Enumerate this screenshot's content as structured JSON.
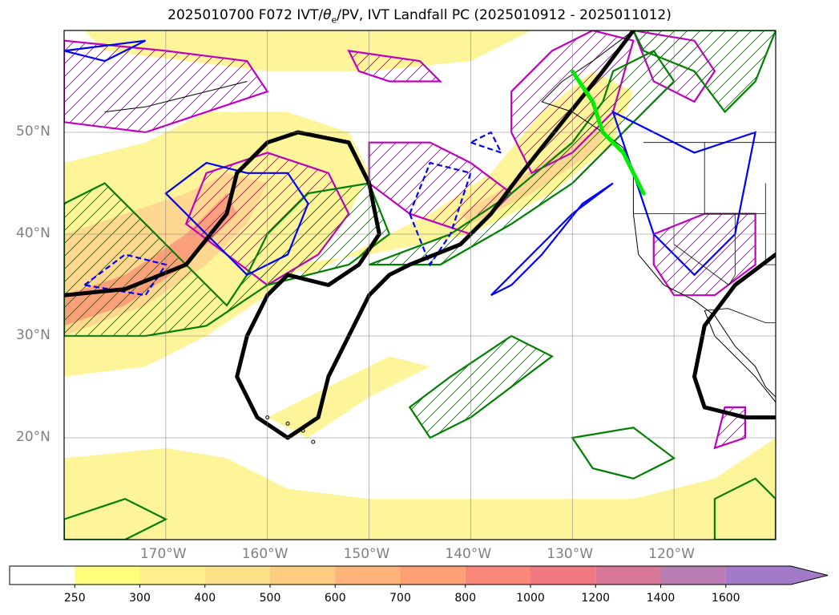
{
  "title": {
    "prefix": "2025010700 F072 IVT/",
    "theta_symbol": "θ",
    "theta_sub": "e",
    "suffix": "/PV, IVT Landfall PC (2025010912 - 2025011012)"
  },
  "chart_data": {
    "type": "map",
    "projection": "cylindrical",
    "extent": {
      "lon": [
        -180,
        -110
      ],
      "lat": [
        10,
        60
      ]
    },
    "lat_ticks": [
      {
        "value": 50,
        "label": "50°N"
      },
      {
        "value": 40,
        "label": "40°N"
      },
      {
        "value": 30,
        "label": "30°N"
      },
      {
        "value": 20,
        "label": "20°N"
      }
    ],
    "lon_ticks": [
      {
        "value": -170,
        "label": "170°W"
      },
      {
        "value": -160,
        "label": "160°W"
      },
      {
        "value": -150,
        "label": "150°W"
      },
      {
        "value": -140,
        "label": "140°W"
      },
      {
        "value": -130,
        "label": "130°W"
      },
      {
        "value": -120,
        "label": "120°W"
      }
    ],
    "grid": true,
    "colorbar": {
      "orientation": "horizontal",
      "extend": "max",
      "levels": [
        "250",
        "300",
        "400",
        "500",
        "600",
        "700",
        "800",
        "1000",
        "1200",
        "1400",
        "1600"
      ],
      "colors": [
        "#fefe7a",
        "#fef08a",
        "#fee08a",
        "#fecc80",
        "#feb478",
        "#fea074",
        "#fa8878",
        "#f27880",
        "#d87896",
        "#bc7cb4",
        "#a27ac8"
      ],
      "under_color": "#ffffff"
    },
    "ivt_shading": [
      {
        "level": 250,
        "color": "#fef49a",
        "regions": [
          [
            [
              -180,
              47
            ],
            [
              -172,
              49
            ],
            [
              -166,
              52
            ],
            [
              -158,
              52
            ],
            [
              -152,
              50
            ],
            [
              -150,
              46
            ],
            [
              -152,
              42
            ],
            [
              -155,
              38
            ],
            [
              -160,
              34
            ],
            [
              -166,
              30
            ],
            [
              -172,
              27
            ],
            [
              -180,
              26
            ]
          ],
          [
            [
              -176,
              58
            ],
            [
              -168,
              57
            ],
            [
              -160,
              56
            ],
            [
              -150,
              56
            ],
            [
              -140,
              57
            ],
            [
              -134,
              60
            ],
            [
              -170,
              60
            ],
            [
              -178,
              60
            ]
          ],
          [
            [
              -158,
              37
            ],
            [
              -150,
              38
            ],
            [
              -140,
              40
            ],
            [
              -132,
              44
            ],
            [
              -126,
              49
            ],
            [
              -124,
              54
            ],
            [
              -128,
              56
            ],
            [
              -133,
              52
            ],
            [
              -138,
              46
            ],
            [
              -144,
              42
            ],
            [
              -150,
              39
            ],
            [
              -156,
              36
            ]
          ],
          [
            [
              -180,
              18
            ],
            [
              -170,
              19
            ],
            [
              -164,
              18
            ],
            [
              -158,
              15
            ],
            [
              -150,
              14
            ],
            [
              -142,
              14
            ],
            [
              -134,
              14
            ],
            [
              -124,
              14
            ],
            [
              -116,
              16
            ],
            [
              -110,
              20
            ],
            [
              -110,
              10
            ],
            [
              -180,
              10
            ]
          ],
          [
            [
              -160,
              22
            ],
            [
              -154,
              25
            ],
            [
              -148,
              28
            ],
            [
              -144,
              27
            ],
            [
              -150,
              24
            ],
            [
              -156,
              20
            ]
          ]
        ]
      },
      {
        "level": 400,
        "color": "#fed890",
        "regions": [
          [
            [
              -180,
              40
            ],
            [
              -174,
              42
            ],
            [
              -168,
              44
            ],
            [
              -164,
              46
            ],
            [
              -160,
              45
            ],
            [
              -162,
              41
            ],
            [
              -166,
              37
            ],
            [
              -172,
              33
            ],
            [
              -180,
              30
            ]
          ],
          [
            [
              -140,
              41
            ],
            [
              -134,
              44
            ],
            [
              -128,
              48
            ],
            [
              -126,
              51
            ],
            [
              -130,
              49
            ],
            [
              -136,
              45
            ],
            [
              -141,
              42
            ]
          ]
        ]
      },
      {
        "level": 700,
        "color": "#fca07c",
        "regions": [
          [
            [
              -180,
              34
            ],
            [
              -174,
              36
            ],
            [
              -168,
              40
            ],
            [
              -164,
              44
            ],
            [
              -163,
              42
            ],
            [
              -168,
              37
            ],
            [
              -174,
              33
            ],
            [
              -180,
              31
            ]
          ]
        ]
      }
    ],
    "pv_contours": [
      {
        "color": "#008000",
        "hatched": true,
        "regions": [
          [
            [
              -180,
              43
            ],
            [
              -176,
              45
            ],
            [
              -172,
              41
            ],
            [
              -168,
              37
            ],
            [
              -164,
              33
            ],
            [
              -162,
              36
            ],
            [
              -160,
              40
            ],
            [
              -156,
              44
            ],
            [
              -150,
              45
            ],
            [
              -148,
              40
            ],
            [
              -152,
              37
            ],
            [
              -160,
              35
            ],
            [
              -166,
              31
            ],
            [
              -172,
              30
            ],
            [
              -180,
              30
            ]
          ],
          [
            [
              -150,
              37
            ],
            [
              -142,
              40
            ],
            [
              -136,
              44
            ],
            [
              -130,
              49
            ],
            [
              -127,
              53
            ],
            [
              -126,
              56
            ],
            [
              -122,
              58
            ],
            [
              -120,
              55
            ],
            [
              -125,
              50
            ],
            [
              -130,
              45
            ],
            [
              -136,
              41
            ],
            [
              -143,
              37
            ]
          ],
          [
            [
              -140,
              22
            ],
            [
              -136,
              25
            ],
            [
              -132,
              28
            ],
            [
              -136,
              30
            ],
            [
              -142,
              26
            ],
            [
              -146,
              23
            ],
            [
              -144,
              20
            ]
          ],
          [
            [
              -123,
              58
            ],
            [
              -118,
              56
            ],
            [
              -115,
              52
            ],
            [
              -112,
              55
            ],
            [
              -110,
              60
            ],
            [
              -124,
              60
            ]
          ]
        ]
      },
      {
        "color": "#008000",
        "hatched": false,
        "regions": [
          [
            [
              -116,
              14
            ],
            [
              -112,
              16
            ],
            [
              -110,
              14
            ],
            [
              -110,
              10
            ],
            [
              -116,
              10
            ]
          ],
          [
            [
              -130,
              20
            ],
            [
              -124,
              21
            ],
            [
              -120,
              18
            ],
            [
              -124,
              16
            ],
            [
              -128,
              17
            ]
          ],
          [
            [
              -180,
              12
            ],
            [
              -174,
              14
            ],
            [
              -170,
              12
            ],
            [
              -174,
              10
            ],
            [
              -180,
              10
            ]
          ]
        ]
      }
    ],
    "pv_dashed_contours": [
      {
        "color": "#0000ff",
        "regions": [
          [
            [
              -178,
              35
            ],
            [
              -174,
              38
            ],
            [
              -170,
              37
            ],
            [
              -172,
              34
            ]
          ],
          [
            [
              -146,
              42
            ],
            [
              -144,
              47
            ],
            [
              -140,
              46
            ],
            [
              -142,
              40
            ],
            [
              -144,
              37
            ]
          ],
          [
            [
              -140,
              49
            ],
            [
              -137,
              48
            ],
            [
              -138,
              50
            ]
          ]
        ]
      }
    ],
    "thetae_contours": [
      {
        "color": "#0000ff",
        "regions": [
          [
            [
              -170,
              44
            ],
            [
              -166,
              40
            ],
            [
              -162,
              36
            ],
            [
              -158,
              38
            ],
            [
              -156,
              43
            ],
            [
              -158,
              46
            ],
            [
              -162,
              46
            ],
            [
              -166,
              47
            ]
          ],
          [
            [
              -138,
              34
            ],
            [
              -134,
              38
            ],
            [
              -130,
              42
            ],
            [
              -126,
              45
            ],
            [
              -129,
              43
            ],
            [
              -133,
              38
            ],
            [
              -136,
              35
            ]
          ],
          [
            [
              -126,
              52
            ],
            [
              -118,
              48
            ],
            [
              -112,
              50
            ],
            [
              -114,
              40
            ],
            [
              -118,
              36
            ],
            [
              -122,
              40
            ],
            [
              -124,
              46
            ]
          ],
          [
            [
              -176,
              57
            ],
            [
              -172,
              59
            ],
            [
              -180,
              58
            ]
          ]
        ]
      }
    ],
    "landfall_pc_hatch": [
      {
        "color": "#c000c0",
        "regions": [
          [
            [
              -180,
              59
            ],
            [
              -170,
              58
            ],
            [
              -162,
              57
            ],
            [
              -160,
              54
            ],
            [
              -166,
              52
            ],
            [
              -172,
              50
            ],
            [
              -180,
              51
            ]
          ],
          [
            [
              -166,
              46
            ],
            [
              -160,
              48
            ],
            [
              -154,
              46
            ],
            [
              -152,
              42
            ],
            [
              -155,
              38
            ],
            [
              -160,
              35
            ],
            [
              -164,
              38
            ],
            [
              -168,
              41
            ]
          ],
          [
            [
              -150,
              49
            ],
            [
              -144,
              49
            ],
            [
              -140,
              47
            ],
            [
              -136,
              44
            ],
            [
              -140,
              40
            ],
            [
              -146,
              42
            ],
            [
              -150,
              45
            ]
          ],
          [
            [
              -152,
              58
            ],
            [
              -145,
              57
            ],
            [
              -143,
              55
            ],
            [
              -148,
              55
            ],
            [
              -151,
              56
            ]
          ],
          [
            [
              -136,
              54
            ],
            [
              -132,
              58
            ],
            [
              -128,
              60
            ],
            [
              -124,
              59
            ],
            [
              -126,
              52
            ],
            [
              -130,
              48
            ],
            [
              -134,
              46
            ],
            [
              -136,
              50
            ]
          ],
          [
            [
              -124,
              60
            ],
            [
              -118,
              59
            ],
            [
              -116,
              56
            ],
            [
              -118,
              53
            ],
            [
              -122,
              55
            ]
          ],
          [
            [
              -122,
              40
            ],
            [
              -117,
              42
            ],
            [
              -112,
              42
            ],
            [
              -112,
              37
            ],
            [
              -116,
              34
            ],
            [
              -120,
              34
            ],
            [
              -122,
              37
            ]
          ],
          [
            [
              -115,
              23
            ],
            [
              -113,
              23
            ],
            [
              -113,
              20
            ],
            [
              -116,
              19
            ]
          ]
        ]
      }
    ],
    "heavy_black_contours": [
      [
        [
          -180,
          34
        ],
        [
          -174,
          34.6
        ],
        [
          -168,
          37
        ],
        [
          -164,
          42
        ],
        [
          -163,
          46
        ],
        [
          -160,
          49
        ],
        [
          -157,
          50
        ],
        [
          -152,
          49
        ],
        [
          -150,
          45
        ],
        [
          -149,
          40
        ],
        [
          -151,
          37
        ],
        [
          -154,
          35
        ],
        [
          -158,
          36
        ],
        [
          -160,
          34
        ],
        [
          -162,
          30
        ],
        [
          -163,
          26
        ],
        [
          -161,
          22
        ],
        [
          -158,
          20
        ],
        [
          -155,
          22
        ],
        [
          -154,
          26
        ],
        [
          -152,
          30
        ],
        [
          -150,
          34
        ],
        [
          -148,
          36
        ],
        [
          -146,
          37
        ],
        [
          -141,
          39
        ],
        [
          -138,
          42
        ],
        [
          -135,
          46
        ],
        [
          -131,
          51
        ],
        [
          -127,
          56
        ],
        [
          -124,
          60
        ]
      ],
      [
        [
          -110,
          38
        ],
        [
          -114,
          35
        ],
        [
          -117,
          31
        ],
        [
          -118,
          26
        ],
        [
          -117,
          23
        ],
        [
          -113,
          22
        ],
        [
          -110,
          22
        ]
      ]
    ],
    "landfall_line": {
      "color": "#00ee00",
      "points": [
        [
          -130,
          56
        ],
        [
          -128,
          53
        ],
        [
          -127,
          50
        ],
        [
          -125,
          48
        ],
        [
          -124,
          46
        ],
        [
          -123,
          44
        ]
      ]
    }
  }
}
